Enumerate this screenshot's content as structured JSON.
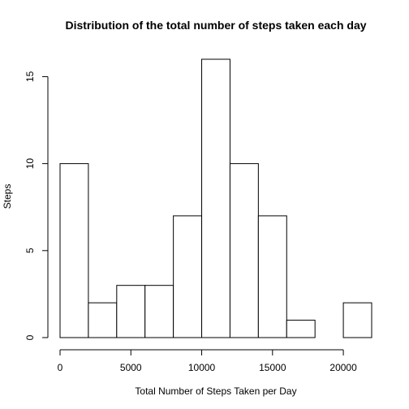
{
  "chart_data": {
    "type": "bar",
    "subtype": "histogram",
    "title": "Distribution of the total number of steps taken each day",
    "xlabel": "Total Number of Steps Taken per Day",
    "ylabel": "Steps",
    "bins": [
      {
        "start": 0,
        "end": 2000,
        "count": 10
      },
      {
        "start": 2000,
        "end": 4000,
        "count": 2
      },
      {
        "start": 4000,
        "end": 6000,
        "count": 3
      },
      {
        "start": 6000,
        "end": 8000,
        "count": 3
      },
      {
        "start": 8000,
        "end": 10000,
        "count": 7
      },
      {
        "start": 10000,
        "end": 12000,
        "count": 16
      },
      {
        "start": 12000,
        "end": 14000,
        "count": 10
      },
      {
        "start": 14000,
        "end": 16000,
        "count": 7
      },
      {
        "start": 16000,
        "end": 18000,
        "count": 1
      },
      {
        "start": 18000,
        "end": 20000,
        "count": 0
      },
      {
        "start": 20000,
        "end": 22000,
        "count": 2
      }
    ],
    "xticks": [
      "0",
      "5000",
      "10000",
      "15000",
      "20000"
    ],
    "yticks": [
      "0",
      "5",
      "10",
      "15"
    ],
    "xlim": [
      0,
      22000
    ],
    "ylim": [
      0,
      16
    ],
    "grid": false,
    "bar_fill": "#ffffff",
    "bar_stroke": "#000000"
  }
}
